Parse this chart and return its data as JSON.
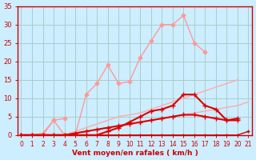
{
  "background_color": "#cceeff",
  "grid_color": "#aacccc",
  "x_labels": [
    "0",
    "1",
    "2",
    "3",
    "4",
    "5",
    "6",
    "7",
    "8",
    "9",
    "10",
    "11",
    "12",
    "13",
    "14",
    "15",
    "16",
    "17",
    "18",
    "19",
    "20",
    "21"
  ],
  "x_values": [
    0,
    1,
    2,
    3,
    4,
    5,
    6,
    7,
    8,
    9,
    10,
    11,
    12,
    13,
    14,
    15,
    16,
    17,
    18,
    19,
    20,
    21
  ],
  "ylim": [
    0,
    35
  ],
  "yticks": [
    0,
    5,
    10,
    15,
    20,
    25,
    30,
    35
  ],
  "xlabel": "Vent moyen/en rafales ( km/h )",
  "series": [
    {
      "y": [
        0,
        0,
        0,
        0,
        0,
        0.5,
        1,
        1.5,
        2,
        2.5,
        3,
        3.5,
        4,
        4.5,
        5,
        5.5,
        6,
        6.5,
        7,
        7.5,
        8,
        9
      ],
      "color": "#ffaaaa",
      "marker": null,
      "linewidth": 1.0,
      "zorder": 2
    },
    {
      "y": [
        0,
        0,
        0,
        0,
        0,
        1,
        2,
        3,
        4,
        5,
        5.5,
        6,
        7,
        8,
        9,
        10,
        11,
        12,
        13,
        14,
        15,
        null
      ],
      "color": "#ffaaaa",
      "marker": null,
      "linewidth": 1.0,
      "zorder": 2
    },
    {
      "y": [
        0,
        0,
        0,
        4,
        0,
        0,
        11,
        14,
        19,
        14,
        14.5,
        21,
        25.5,
        30,
        30,
        32.5,
        25,
        22.5,
        null,
        null,
        null,
        null
      ],
      "color": "#ff9999",
      "marker": "D",
      "markersize": 2.5,
      "linewidth": 1.0,
      "zorder": 3
    },
    {
      "y": [
        0,
        0,
        0.5,
        4,
        4.5,
        null,
        null,
        null,
        null,
        null,
        null,
        null,
        null,
        null,
        null,
        null,
        null,
        null,
        null,
        null,
        null,
        null
      ],
      "color": "#ff9999",
      "marker": "D",
      "markersize": 2.5,
      "linewidth": 1.0,
      "zorder": 3
    },
    {
      "y": [
        0,
        0,
        0,
        0,
        0,
        0,
        0,
        0,
        1,
        2,
        3.5,
        5,
        6.5,
        7,
        8,
        11,
        11,
        8,
        7,
        4,
        4.5,
        null
      ],
      "color": "#dd0000",
      "marker": "+",
      "markersize": 4,
      "linewidth": 1.5,
      "zorder": 5
    },
    {
      "y": [
        0,
        0,
        0,
        0,
        0,
        0.5,
        1,
        1.5,
        2,
        2.5,
        3,
        3.5,
        4,
        4.5,
        5,
        5.5,
        5.5,
        5,
        4.5,
        4,
        4,
        null
      ],
      "color": "#dd0000",
      "marker": "+",
      "markersize": 4,
      "linewidth": 1.5,
      "zorder": 5
    },
    {
      "y": [
        0,
        0,
        0,
        0,
        0,
        0,
        0,
        0,
        0,
        0,
        0,
        0,
        0,
        0,
        0,
        0,
        0,
        0,
        0,
        0,
        0,
        1
      ],
      "color": "#cc0000",
      "marker": "+",
      "markersize": 3,
      "linewidth": 1.0,
      "zorder": 4
    }
  ],
  "tick_color": "#cc0000",
  "label_color": "#cc0000",
  "axis_color": "#cc0000"
}
